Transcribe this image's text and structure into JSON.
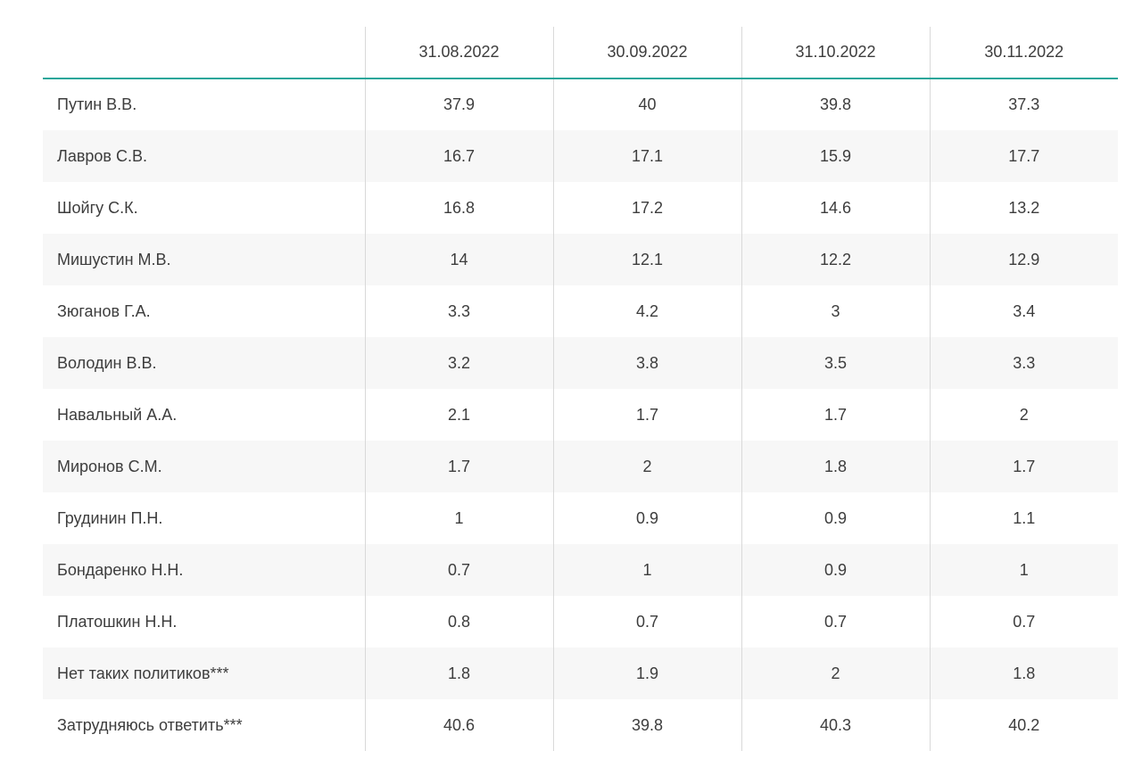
{
  "table": {
    "columns": [
      "31.08.2022",
      "30.09.2022",
      "31.10.2022",
      "30.11.2022"
    ],
    "rows": [
      {
        "label": "Путин В.В.",
        "values": [
          "37.9",
          "40",
          "39.8",
          "37.3"
        ]
      },
      {
        "label": "Лавров С.В.",
        "values": [
          "16.7",
          "17.1",
          "15.9",
          "17.7"
        ]
      },
      {
        "label": "Шойгу С.К.",
        "values": [
          "16.8",
          "17.2",
          "14.6",
          "13.2"
        ]
      },
      {
        "label": "Мишустин М.В.",
        "values": [
          "14",
          "12.1",
          "12.2",
          "12.9"
        ]
      },
      {
        "label": "Зюганов Г.А.",
        "values": [
          "3.3",
          "4.2",
          "3",
          "3.4"
        ]
      },
      {
        "label": "Володин В.В.",
        "values": [
          "3.2",
          "3.8",
          "3.5",
          "3.3"
        ]
      },
      {
        "label": "Навальный А.А.",
        "values": [
          "2.1",
          "1.7",
          "1.7",
          "2"
        ]
      },
      {
        "label": "Миронов С.М.",
        "values": [
          "1.7",
          "2",
          "1.8",
          "1.7"
        ]
      },
      {
        "label": "Грудинин П.Н.",
        "values": [
          "1",
          "0.9",
          "0.9",
          "1.1"
        ]
      },
      {
        "label": "Бондаренко Н.Н.",
        "values": [
          "0.7",
          "1",
          "0.9",
          "1"
        ]
      },
      {
        "label": "Платошкин Н.Н.",
        "values": [
          "0.8",
          "0.7",
          "0.7",
          "0.7"
        ]
      },
      {
        "label": "Нет таких политиков***",
        "values": [
          "1.8",
          "1.9",
          "2",
          "1.8"
        ]
      },
      {
        "label": "Затрудняюсь ответить***",
        "values": [
          "40.6",
          "39.8",
          "40.3",
          "40.2"
        ]
      }
    ]
  },
  "chart_data": {
    "type": "table",
    "title": "",
    "categories": [
      "31.08.2022",
      "30.09.2022",
      "31.10.2022",
      "30.11.2022"
    ],
    "series": [
      {
        "name": "Путин В.В.",
        "values": [
          37.9,
          40,
          39.8,
          37.3
        ]
      },
      {
        "name": "Лавров С.В.",
        "values": [
          16.7,
          17.1,
          15.9,
          17.7
        ]
      },
      {
        "name": "Шойгу С.К.",
        "values": [
          16.8,
          17.2,
          14.6,
          13.2
        ]
      },
      {
        "name": "Мишустин М.В.",
        "values": [
          14,
          12.1,
          12.2,
          12.9
        ]
      },
      {
        "name": "Зюганов Г.А.",
        "values": [
          3.3,
          4.2,
          3,
          3.4
        ]
      },
      {
        "name": "Володин В.В.",
        "values": [
          3.2,
          3.8,
          3.5,
          3.3
        ]
      },
      {
        "name": "Навальный А.А.",
        "values": [
          2.1,
          1.7,
          1.7,
          2
        ]
      },
      {
        "name": "Миронов С.М.",
        "values": [
          1.7,
          2,
          1.8,
          1.7
        ]
      },
      {
        "name": "Грудинин П.Н.",
        "values": [
          1,
          0.9,
          0.9,
          1.1
        ]
      },
      {
        "name": "Бондаренко Н.Н.",
        "values": [
          0.7,
          1,
          0.9,
          1
        ]
      },
      {
        "name": "Платошкин Н.Н.",
        "values": [
          0.8,
          0.7,
          0.7,
          0.7
        ]
      },
      {
        "name": "Нет таких политиков***",
        "values": [
          1.8,
          1.9,
          2,
          1.8
        ]
      },
      {
        "name": "Затрудняюсь ответить***",
        "values": [
          40.6,
          39.8,
          40.3,
          40.2
        ]
      }
    ],
    "layout": {
      "zebra_striping": true,
      "header_rule": "teal",
      "grid": "vertical-dividers-only"
    }
  },
  "colors": {
    "accent": "#26a69a",
    "divider": "#d9d9d9",
    "zebra": "#f7f7f7",
    "text": "#3d3d3d",
    "bg": "#ffffff"
  }
}
